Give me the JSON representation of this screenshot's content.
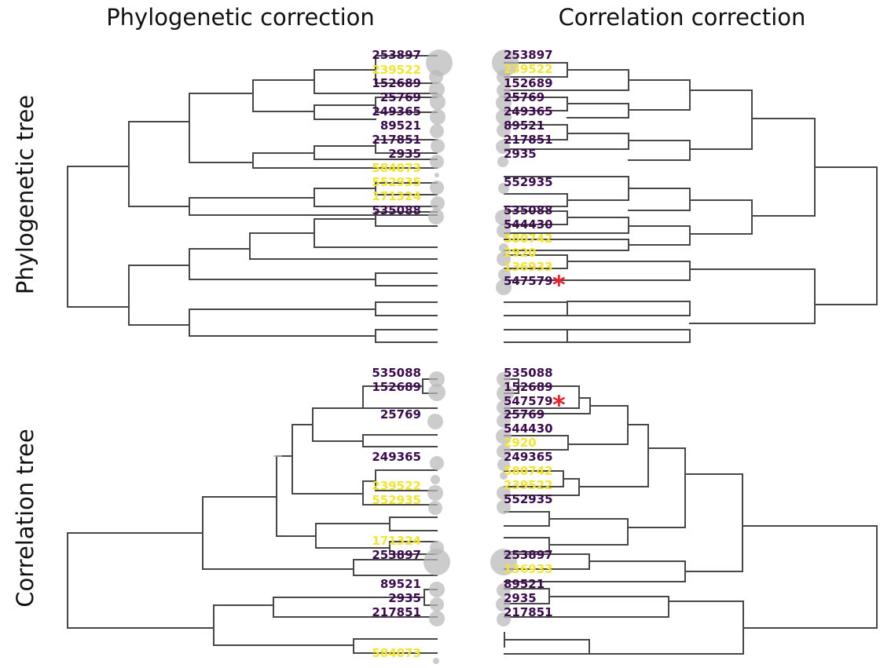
{
  "headers": {
    "col_left": "Phylogenetic correction",
    "col_right": "Correlation correction",
    "row_top": "Phylogenetic tree",
    "row_bottom": "Correlation tree"
  },
  "colors": {
    "purple": "#3d0a4f",
    "yellow": "#f2e52c",
    "branch": "#474747",
    "bubble": "#b8b8b8",
    "star": "#e8202a"
  },
  "star_symbol": "*",
  "panels": {
    "top_left": {
      "labels": [
        {
          "text": "253897",
          "color": "purple"
        },
        {
          "text": "239522",
          "color": "yellow"
        },
        {
          "text": "152689",
          "color": "purple"
        },
        {
          "text": "25769",
          "color": "purple"
        },
        {
          "text": "249365",
          "color": "purple"
        },
        {
          "text": "89521",
          "color": "purple"
        },
        {
          "text": "217851",
          "color": "purple"
        },
        {
          "text": "2935",
          "color": "purple"
        },
        {
          "text": "584073",
          "color": "yellow"
        },
        {
          "text": "552935",
          "color": "yellow"
        },
        {
          "text": "171324",
          "color": "yellow"
        },
        {
          "text": "535088",
          "color": "purple"
        }
      ]
    },
    "top_right": {
      "labels": [
        {
          "text": "253897",
          "color": "purple"
        },
        {
          "text": "239522",
          "color": "yellow"
        },
        {
          "text": "152689",
          "color": "purple"
        },
        {
          "text": "25769",
          "color": "purple"
        },
        {
          "text": "249365",
          "color": "purple"
        },
        {
          "text": "89521",
          "color": "purple"
        },
        {
          "text": "217851",
          "color": "purple"
        },
        {
          "text": "2935",
          "color": "purple"
        },
        {
          "text": "552935",
          "color": "purple"
        },
        {
          "text": "535088",
          "color": "purple"
        },
        {
          "text": "544430",
          "color": "purple"
        },
        {
          "text": "580742",
          "color": "yellow"
        },
        {
          "text": "2920",
          "color": "yellow"
        },
        {
          "text": "136933",
          "color": "yellow"
        },
        {
          "text": "547579",
          "color": "purple",
          "star": true
        }
      ]
    },
    "bottom_left": {
      "labels": [
        {
          "text": "535088",
          "color": "purple"
        },
        {
          "text": "152689",
          "color": "purple"
        },
        {
          "text": "25769",
          "color": "purple"
        },
        {
          "text": "249365",
          "color": "purple"
        },
        {
          "text": "239522",
          "color": "yellow"
        },
        {
          "text": "552935",
          "color": "yellow"
        },
        {
          "text": "171324",
          "color": "yellow"
        },
        {
          "text": "253897",
          "color": "purple"
        },
        {
          "text": "89521",
          "color": "purple"
        },
        {
          "text": "2935",
          "color": "purple"
        },
        {
          "text": "217851",
          "color": "purple"
        },
        {
          "text": "584073",
          "color": "yellow"
        }
      ]
    },
    "bottom_right": {
      "labels": [
        {
          "text": "535088",
          "color": "purple"
        },
        {
          "text": "152689",
          "color": "purple"
        },
        {
          "text": "547579",
          "color": "purple",
          "star": true
        },
        {
          "text": "25769",
          "color": "purple"
        },
        {
          "text": "544430",
          "color": "purple"
        },
        {
          "text": "2920",
          "color": "yellow"
        },
        {
          "text": "249365",
          "color": "purple"
        },
        {
          "text": "580742",
          "color": "yellow"
        },
        {
          "text": "239522",
          "color": "yellow"
        },
        {
          "text": "552935",
          "color": "purple"
        },
        {
          "text": "253897",
          "color": "purple"
        },
        {
          "text": "136933",
          "color": "yellow"
        },
        {
          "text": "89521",
          "color": "purple"
        },
        {
          "text": "2935",
          "color": "purple"
        },
        {
          "text": "217851",
          "color": "purple"
        }
      ]
    }
  }
}
